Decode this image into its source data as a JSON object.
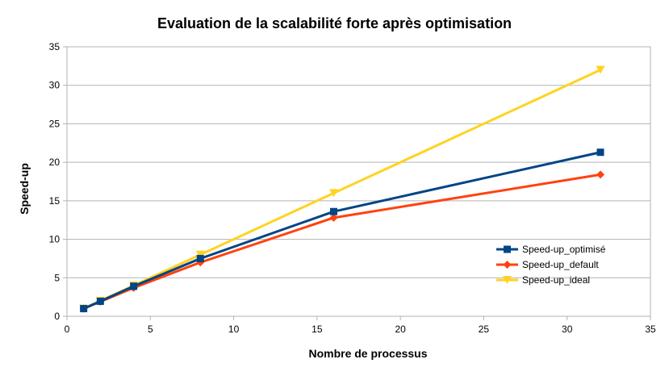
{
  "chart_data": {
    "type": "line",
    "title": "Evaluation de la scalabilité forte après optimisation",
    "xlabel": "Nombre de processus",
    "ylabel": "Speed-up",
    "xlim": [
      0,
      35
    ],
    "ylim": [
      0,
      35
    ],
    "xticks": [
      0,
      5,
      10,
      15,
      20,
      25,
      30,
      35
    ],
    "yticks": [
      0,
      5,
      10,
      15,
      20,
      25,
      30,
      35
    ],
    "grid": "horizontal",
    "legend_position": "right",
    "series": [
      {
        "name": "Speed-up_optimisé",
        "color": "#004586",
        "marker": "square",
        "x": [
          1,
          2,
          4,
          8,
          16,
          32
        ],
        "y": [
          1,
          1.95,
          3.9,
          7.5,
          13.6,
          21.3
        ]
      },
      {
        "name": "Speed-up_default",
        "color": "#ff420e",
        "marker": "diamond",
        "x": [
          1,
          2,
          4,
          8,
          16,
          32
        ],
        "y": [
          1,
          1.9,
          3.7,
          7.0,
          12.8,
          18.4
        ]
      },
      {
        "name": "Speed-up_ideal",
        "color": "#ffd320",
        "marker": "triangle-down",
        "x": [
          1,
          2,
          4,
          8,
          16,
          32
        ],
        "y": [
          1,
          2,
          4,
          8,
          16,
          32
        ]
      }
    ]
  }
}
